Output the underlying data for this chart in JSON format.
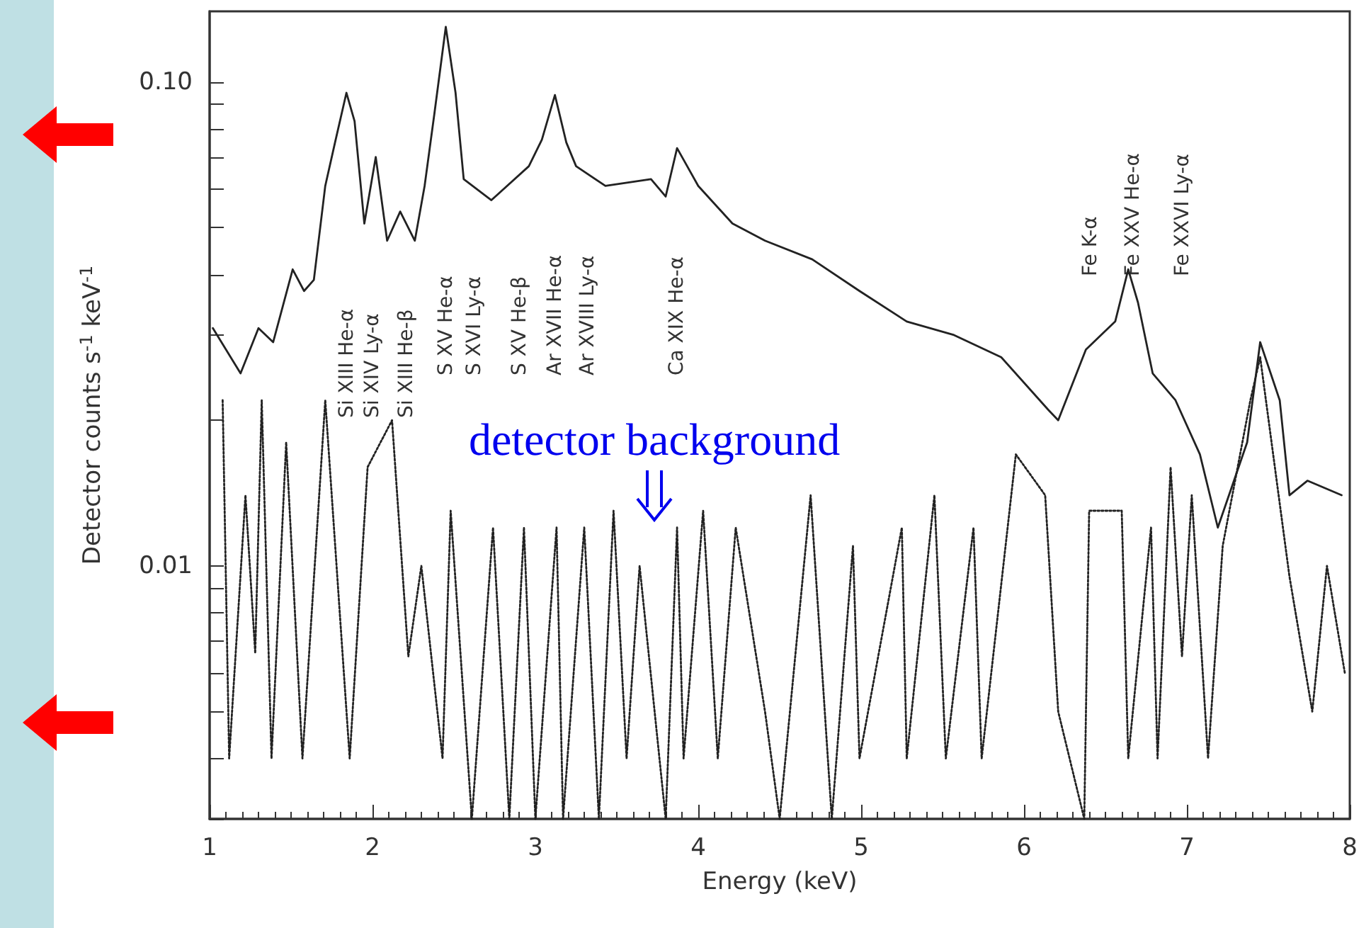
{
  "chart_data": {
    "type": "line",
    "xlabel": "Energy (keV)",
    "ylabel": "Detector counts s$^{-1}$ keV$^{-1}$",
    "log": true,
    "marker": "none",
    "xlim": [
      1,
      8
    ],
    "xticks": [
      1,
      2,
      3,
      4,
      5,
      6,
      7,
      8
    ],
    "ylim": [
      0.003,
      0.14
    ],
    "yticks": [
      {
        "value": 0.003,
        "label": null
      },
      {
        "value": 0.004,
        "label": null
      },
      {
        "value": 0.005,
        "label": null
      },
      {
        "value": 0.006,
        "label": null
      },
      {
        "value": 0.007,
        "label": null
      },
      {
        "value": 0.008,
        "label": null
      },
      {
        "value": 0.009,
        "label": null
      },
      0.01,
      {
        "value": 0.02,
        "label": null
      },
      {
        "value": 0.03,
        "label": null
      },
      {
        "value": 0.04,
        "label": null
      },
      {
        "value": 0.05,
        "label": null
      },
      {
        "value": 0.06,
        "label": null
      },
      {
        "value": 0.07,
        "label": null
      },
      {
        "value": 0.08,
        "label": null
      },
      {
        "value": 0.09,
        "label": null
      },
      {
        "value": 0.1,
        "label": "0.10"
      }
    ],
    "series": [
      {
        "color": "#222222",
        "line_style": "solid",
        "x": [
          1.02,
          1.19,
          1.3,
          1.39,
          1.51,
          1.58,
          1.64,
          1.71,
          1.77,
          1.84,
          1.89,
          1.95,
          2.02,
          2.09,
          2.17,
          2.26,
          2.32,
          2.38,
          2.45,
          2.51,
          2.56,
          2.73,
          2.96,
          3.04,
          3.12,
          3.19,
          3.25,
          3.43,
          3.71,
          3.8,
          3.87,
          4.0,
          4.21,
          4.41,
          4.7,
          4.99,
          5.28,
          5.57,
          5.86,
          6.15,
          6.21,
          6.38,
          6.56,
          6.64,
          6.7,
          6.79,
          6.93,
          7.08,
          7.19,
          7.37,
          7.45,
          7.57,
          7.63,
          7.74,
          7.95
        ],
        "values": [
          0.031,
          0.025,
          0.031,
          0.029,
          0.041,
          0.037,
          0.039,
          0.061,
          0.075,
          0.095,
          0.083,
          0.051,
          0.07,
          0.047,
          0.054,
          0.047,
          0.061,
          0.086,
          0.13,
          0.095,
          0.063,
          0.057,
          0.067,
          0.076,
          0.094,
          0.075,
          0.067,
          0.061,
          0.063,
          0.058,
          0.073,
          0.061,
          0.051,
          0.047,
          0.043,
          0.037,
          0.032,
          0.03,
          0.027,
          0.021,
          0.02,
          0.028,
          0.032,
          0.041,
          0.035,
          0.025,
          0.022,
          0.017,
          0.012,
          0.018,
          0.029,
          0.022,
          0.014,
          0.015,
          0.014
        ]
      },
      {
        "name": "detector background",
        "color": "#222222",
        "line_style": "dotted",
        "x": [
          1.08,
          1.12,
          1.22,
          1.28,
          1.32,
          1.38,
          1.47,
          1.57,
          1.71,
          1.86,
          1.97,
          2.12,
          2.22,
          2.3,
          2.43,
          2.48,
          2.61,
          2.74,
          2.84,
          2.93,
          3.0,
          3.13,
          3.17,
          3.3,
          3.39,
          3.48,
          3.56,
          3.64,
          3.8,
          3.87,
          3.91,
          4.03,
          4.12,
          4.23,
          4.41,
          4.5,
          4.69,
          4.82,
          4.95,
          4.99,
          5.25,
          5.28,
          5.45,
          5.52,
          5.69,
          5.74,
          5.95,
          6.13,
          6.21,
          6.37,
          6.4,
          6.6,
          6.64,
          6.78,
          6.82,
          6.9,
          6.97,
          7.03,
          7.13,
          7.22,
          7.39,
          7.45,
          7.63,
          7.77,
          7.86,
          7.97
        ],
        "values": [
          0.022,
          0.004,
          0.014,
          0.0066,
          0.022,
          0.004,
          0.018,
          0.004,
          0.022,
          0.004,
          0.016,
          0.02,
          0.0065,
          0.01,
          0.004,
          0.013,
          0.003,
          0.012,
          0.003,
          0.012,
          0.003,
          0.012,
          0.003,
          0.012,
          0.003,
          0.013,
          0.004,
          0.01,
          0.003,
          0.012,
          0.004,
          0.013,
          0.004,
          0.012,
          0.005,
          0.003,
          0.014,
          0.003,
          0.011,
          0.004,
          0.012,
          0.004,
          0.014,
          0.004,
          0.012,
          0.004,
          0.017,
          0.014,
          0.005,
          0.003,
          0.013,
          0.013,
          0.004,
          0.012,
          0.004,
          0.016,
          0.0065,
          0.014,
          0.004,
          0.011,
          0.022,
          0.027,
          0.0095,
          0.005,
          0.01,
          0.006
        ]
      }
    ],
    "annotations": [
      "Si XIII He-α",
      "Si XIV Ly-α",
      "Si XIII He-β",
      "S XV He-α",
      "S XVI Ly-α",
      "S XV He-β",
      "Ar XVII He-α",
      "Ar XVIII Ly-α",
      "Ca XIX He-α",
      "Fe K-α",
      "Fe XXV He-α",
      "Fe XXVI Ly-α"
    ]
  }
}
